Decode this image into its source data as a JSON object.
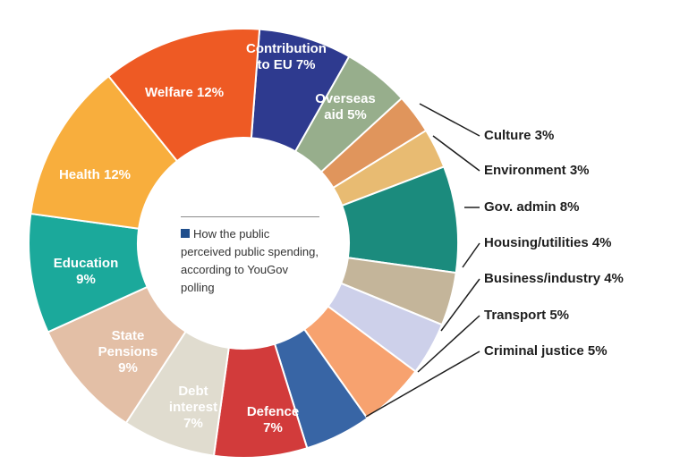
{
  "chart_data": {
    "type": "pie",
    "variant": "donut",
    "legend": {
      "text": "How the public perceived public spending, according to YouGov polling",
      "color": "#1f4e8c"
    },
    "slices": [
      {
        "label": "Contribution to EU 7%",
        "lines": [
          "Contribution",
          "to EU 7%"
        ],
        "value": 7,
        "color": "#2e3a8f",
        "label_color": "#ffffff",
        "outside": false
      },
      {
        "label": "Overseas aid 5%",
        "lines": [
          "Overseas",
          "aid 5%"
        ],
        "value": 5,
        "color": "#97ae8c",
        "label_color": "#ffffff",
        "outside": false
      },
      {
        "label": "Culture 3%",
        "lines": [
          "Culture 3%"
        ],
        "value": 3,
        "color": "#e0955c",
        "label_color": "#1e1e1e",
        "outside": true
      },
      {
        "label": "Environment 3%",
        "lines": [
          "Environment 3%"
        ],
        "value": 3,
        "color": "#e8bb72",
        "label_color": "#1e1e1e",
        "outside": true
      },
      {
        "label": "Gov. admin 8%",
        "lines": [
          "Gov. admin 8%"
        ],
        "value": 8,
        "color": "#1b8b7d",
        "label_color": "#1e1e1e",
        "outside": true
      },
      {
        "label": "Housing/utilities 4%",
        "lines": [
          "Housing/utilities 4%"
        ],
        "value": 4,
        "color": "#c4b59a",
        "label_color": "#1e1e1e",
        "outside": true
      },
      {
        "label": "Business/industry 4%",
        "lines": [
          "Business/industry 4%"
        ],
        "value": 4,
        "color": "#cdd0ea",
        "label_color": "#1e1e1e",
        "outside": true
      },
      {
        "label": "Transport 5%",
        "lines": [
          "Transport 5%"
        ],
        "value": 5,
        "color": "#f7a26f",
        "label_color": "#1e1e1e",
        "outside": true
      },
      {
        "label": "Criminal justice 5%",
        "lines": [
          "Criminal justice 5%"
        ],
        "value": 5,
        "color": "#3865a5",
        "label_color": "#1e1e1e",
        "outside": true
      },
      {
        "label": "Defence 7%",
        "lines": [
          "Defence",
          "7%"
        ],
        "value": 7,
        "color": "#d23b3b",
        "label_color": "#ffffff",
        "outside": false
      },
      {
        "label": "Debt interest 7%",
        "lines": [
          "Debt",
          "interest",
          "7%"
        ],
        "value": 7,
        "color": "#e0dccf",
        "label_color": "#ffffff",
        "outside": false
      },
      {
        "label": "State Pensions 9%",
        "lines": [
          "State",
          "Pensions",
          "9%"
        ],
        "value": 9,
        "color": "#e3bfa6",
        "label_color": "#ffffff",
        "outside": false
      },
      {
        "label": "Education 9%",
        "lines": [
          "Education",
          "9%"
        ],
        "value": 9,
        "color": "#1ba99b",
        "label_color": "#ffffff",
        "outside": false
      },
      {
        "label": "Health 12%",
        "lines": [
          "Health 12%"
        ],
        "value": 12,
        "color": "#f8ae3d",
        "label_color": "#ffffff",
        "outside": false
      },
      {
        "label": "Welfare 12%",
        "lines": [
          "Welfare 12%"
        ],
        "value": 12,
        "color": "#ee5a24",
        "label_color": "#ffffff",
        "outside": false
      }
    ]
  }
}
